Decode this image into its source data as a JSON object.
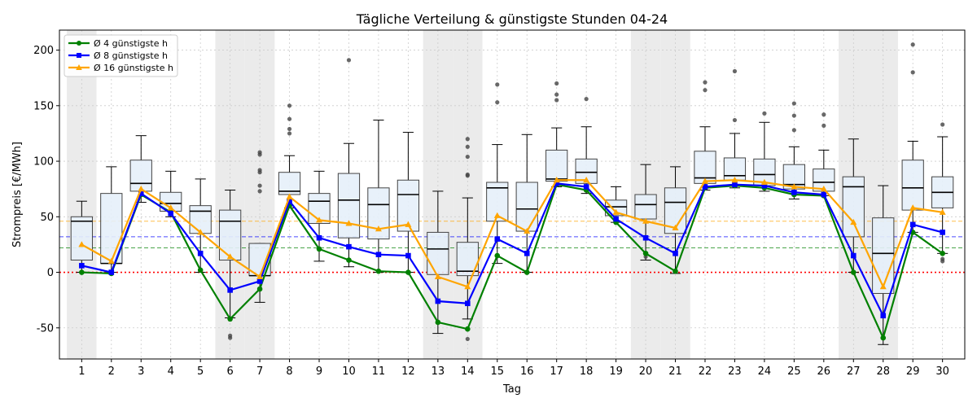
{
  "chart_data": {
    "type": "box+line",
    "title": "Tägliche Verteilung & günstigste Stunden 04-24",
    "xlabel": "Tag",
    "ylabel": "Strompreis [€/MWh]",
    "ylim": [
      -78,
      218
    ],
    "yticks": [
      -50,
      0,
      50,
      100,
      150,
      200
    ],
    "grid": true,
    "legend_position": "top-left",
    "days": [
      1,
      2,
      3,
      4,
      5,
      6,
      7,
      8,
      9,
      10,
      11,
      12,
      13,
      14,
      15,
      16,
      17,
      18,
      19,
      20,
      21,
      22,
      23,
      24,
      25,
      26,
      27,
      28,
      29,
      30
    ],
    "weekend_days": [
      1,
      6,
      7,
      13,
      14,
      20,
      21,
      27,
      28
    ],
    "boxes": [
      {
        "min": 0,
        "q1": 11,
        "median": 46,
        "q3": 50,
        "max": 64,
        "outliers": []
      },
      {
        "min": 0,
        "q1": 8,
        "median": 8,
        "q3": 71,
        "max": 95,
        "outliers": []
      },
      {
        "min": 63,
        "q1": 73,
        "median": 80,
        "q3": 101,
        "max": 123,
        "outliers": []
      },
      {
        "min": 50,
        "q1": 55,
        "median": 62,
        "q3": 72,
        "max": 91,
        "outliers": []
      },
      {
        "min": 0,
        "q1": 35,
        "median": 55,
        "q3": 60,
        "max": 84,
        "outliers": []
      },
      {
        "min": -41,
        "q1": 11,
        "median": 46,
        "q3": 56,
        "max": 74,
        "outliers": [
          -57,
          -59
        ]
      },
      {
        "min": -27,
        "q1": -3,
        "median": -3,
        "q3": 26,
        "max": 26,
        "outliers": [
          73,
          78,
          90,
          92,
          106,
          108
        ]
      },
      {
        "min": 58,
        "q1": 70,
        "median": 73,
        "q3": 90,
        "max": 105,
        "outliers": [
          125,
          129,
          138,
          150
        ]
      },
      {
        "min": 10,
        "q1": 44,
        "median": 64,
        "q3": 71,
        "max": 91,
        "outliers": []
      },
      {
        "min": 5,
        "q1": 31,
        "median": 65,
        "q3": 89,
        "max": 116,
        "outliers": [
          191
        ]
      },
      {
        "min": 0,
        "q1": 30,
        "median": 61,
        "q3": 76,
        "max": 137,
        "outliers": []
      },
      {
        "min": 0,
        "q1": 37,
        "median": 70,
        "q3": 83,
        "max": 126,
        "outliers": []
      },
      {
        "min": -55,
        "q1": -2,
        "median": 21,
        "q3": 36,
        "max": 73,
        "outliers": []
      },
      {
        "min": -42,
        "q1": -3,
        "median": 1,
        "q3": 27,
        "max": 67,
        "outliers": [
          -60,
          87,
          88,
          104,
          113,
          120
        ]
      },
      {
        "min": 8,
        "q1": 46,
        "median": 76,
        "q3": 81,
        "max": 115,
        "outliers": [
          153,
          169
        ]
      },
      {
        "min": 0,
        "q1": 37,
        "median": 57,
        "q3": 81,
        "max": 124,
        "outliers": []
      },
      {
        "min": 77,
        "q1": 82,
        "median": 84,
        "q3": 110,
        "max": 130,
        "outliers": [
          155,
          160,
          170
        ]
      },
      {
        "min": 71,
        "q1": 80,
        "median": 90,
        "q3": 102,
        "max": 131,
        "outliers": [
          156
        ]
      },
      {
        "min": 45,
        "q1": 51,
        "median": 59,
        "q3": 65,
        "max": 77,
        "outliers": []
      },
      {
        "min": 11,
        "q1": 48,
        "median": 61,
        "q3": 70,
        "max": 97,
        "outliers": [
          14
        ]
      },
      {
        "min": -1,
        "q1": 35,
        "median": 63,
        "q3": 76,
        "max": 95,
        "outliers": []
      },
      {
        "min": 74,
        "q1": 80,
        "median": 85,
        "q3": 109,
        "max": 131,
        "outliers": [
          164,
          171
        ]
      },
      {
        "min": 76,
        "q1": 83,
        "median": 87,
        "q3": 103,
        "max": 125,
        "outliers": [
          137,
          181
        ]
      },
      {
        "min": 73,
        "q1": 78,
        "median": 88,
        "q3": 102,
        "max": 135,
        "outliers": [
          143
        ]
      },
      {
        "min": 66,
        "q1": 75,
        "median": 79,
        "q3": 97,
        "max": 113,
        "outliers": [
          128,
          141,
          152
        ]
      },
      {
        "min": 69,
        "q1": 73,
        "median": 81,
        "q3": 93,
        "max": 110,
        "outliers": [
          132,
          142
        ]
      },
      {
        "min": 0,
        "q1": 32,
        "median": 77,
        "q3": 86,
        "max": 120,
        "outliers": []
      },
      {
        "min": -65,
        "q1": -19,
        "median": 17,
        "q3": 49,
        "max": 78,
        "outliers": []
      },
      {
        "min": 36,
        "q1": 56,
        "median": 76,
        "q3": 101,
        "max": 118,
        "outliers": [
          180,
          205
        ]
      },
      {
        "min": 17,
        "q1": 58,
        "median": 72,
        "q3": 86,
        "max": 122,
        "outliers": [
          10,
          12,
          133
        ]
      }
    ],
    "series": [
      {
        "name": "Ø 4 günstigste h",
        "color": "#008000",
        "marker": "circle",
        "hline": 22,
        "values": [
          0,
          -1,
          70,
          54,
          2,
          -42,
          -15,
          60,
          21,
          11,
          1,
          0,
          -45,
          -51,
          15,
          0,
          79,
          74,
          45,
          17,
          1,
          76,
          78,
          76,
          70,
          69,
          0,
          -59,
          36,
          17
        ]
      },
      {
        "name": "Ø 8 günstigste h",
        "color": "#0000ff",
        "marker": "square",
        "hline": 32,
        "values": [
          6,
          0,
          71,
          53,
          17,
          -16,
          -8,
          64,
          31,
          23,
          16,
          15,
          -26,
          -28,
          30,
          17,
          80,
          77,
          48,
          31,
          17,
          77,
          79,
          78,
          72,
          70,
          15,
          -39,
          43,
          36
        ]
      },
      {
        "name": "Ø 16 günstigste h",
        "color": "#ffa500",
        "marker": "triangle",
        "hline": 46,
        "values": [
          25,
          10,
          75,
          58,
          36,
          14,
          -4,
          68,
          47,
          44,
          39,
          43,
          -4,
          -13,
          51,
          37,
          83,
          83,
          54,
          46,
          40,
          82,
          83,
          81,
          77,
          75,
          45,
          -13,
          58,
          54
        ]
      }
    ],
    "zero_line_color": "#ff0000",
    "box_fill": "#e6f0fa",
    "box_edge": "#444444",
    "weekend_shade": "#ebebeb"
  }
}
